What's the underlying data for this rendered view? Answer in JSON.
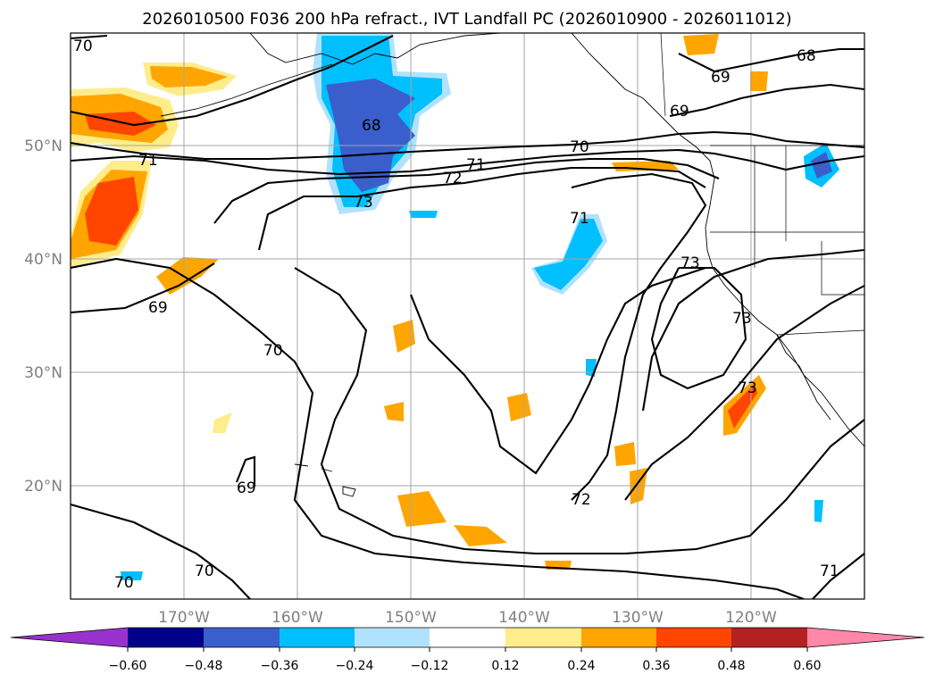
{
  "title": "2026010500 F036 200 hPa refract., IVT Landfall PC (2026010900 - 2026011012)",
  "map": {
    "lon_labels": [
      "170°W",
      "160°W",
      "150°W",
      "140°W",
      "130°W",
      "120°W"
    ],
    "lat_labels": [
      "50°N",
      "40°N",
      "30°N",
      "20°N"
    ],
    "contour_labels": [
      "70",
      "71",
      "68",
      "68",
      "69",
      "70",
      "71",
      "72",
      "73",
      "69",
      "69",
      "70",
      "73",
      "71",
      "72",
      "73",
      "73",
      "69",
      "70",
      "70",
      "71"
    ]
  },
  "colorbar": {
    "ticks": [
      "−0.60",
      "−0.48",
      "−0.36",
      "−0.24",
      "−0.12",
      "0.12",
      "0.24",
      "0.36",
      "0.48",
      "0.60"
    ],
    "colors": [
      "#9932cc",
      "#00008b",
      "#3a5fcd",
      "#00bfff",
      "#b0e2ff",
      "#ffffff",
      "#ffec8b",
      "#ffa500",
      "#ff4500",
      "#b22222",
      "#ff88aa"
    ]
  }
}
